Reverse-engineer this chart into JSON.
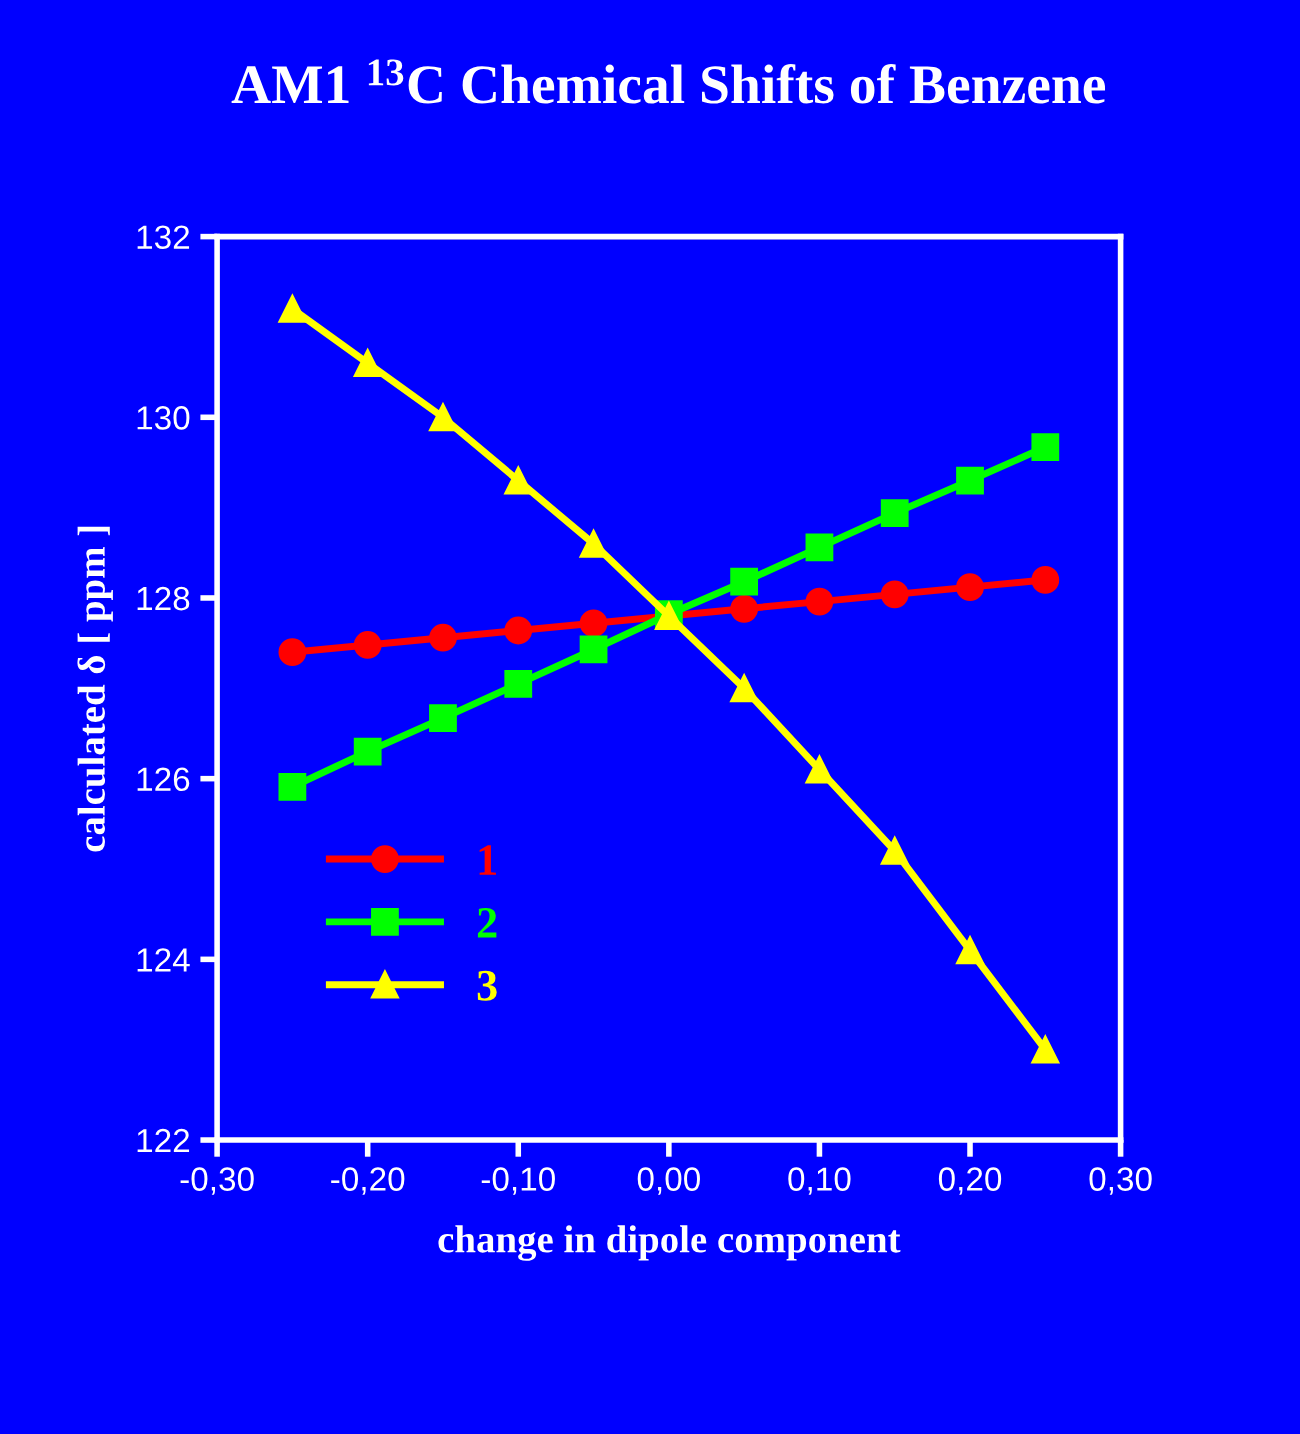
{
  "chart_data": {
    "type": "line",
    "title": "AM1 $^{13}$C Chemical Shifts of Benzene",
    "xlabel": "change in dipole component",
    "ylabel": "calculated δ [ ppm ]",
    "x": [
      -0.25,
      -0.2,
      -0.15,
      -0.1,
      -0.05,
      0,
      0.05,
      0.1,
      0.15,
      0.2,
      0.25
    ],
    "series": [
      {
        "name": "1",
        "color": "#ff0000",
        "marker": "circle",
        "values": [
          127.4,
          127.48,
          127.56,
          127.64,
          127.72,
          127.8,
          127.88,
          127.96,
          128.04,
          128.12,
          128.2
        ]
      },
      {
        "name": "2",
        "color": "#00ff00",
        "marker": "square",
        "values": [
          125.91,
          126.3,
          126.67,
          127.05,
          127.43,
          127.82,
          128.18,
          128.56,
          128.94,
          129.3,
          129.67
        ]
      },
      {
        "name": "3",
        "color": "#ffff00",
        "marker": "triangle",
        "values": [
          131.2,
          130.6,
          130.0,
          129.3,
          128.6,
          127.8,
          127.0,
          126.1,
          125.2,
          124.1,
          123.0
        ]
      }
    ],
    "xlim": [
      -0.3,
      0.3
    ],
    "xticks": [
      {
        "value": -0.3,
        "label": "-0,30"
      },
      {
        "value": -0.2,
        "label": "-0,20"
      },
      {
        "value": -0.1,
        "label": "-0,10"
      },
      {
        "value": 0,
        "label": "0,00"
      },
      {
        "value": 0.1,
        "label": "0,10"
      },
      {
        "value": 0.2,
        "label": "0,20"
      },
      {
        "value": 0.3,
        "label": "0,30"
      }
    ],
    "ylim": [
      122,
      132
    ],
    "yticks": [
      122,
      124,
      126,
      128,
      130,
      132
    ],
    "grid": false,
    "legend": "bottom left",
    "line_style": "solid"
  }
}
